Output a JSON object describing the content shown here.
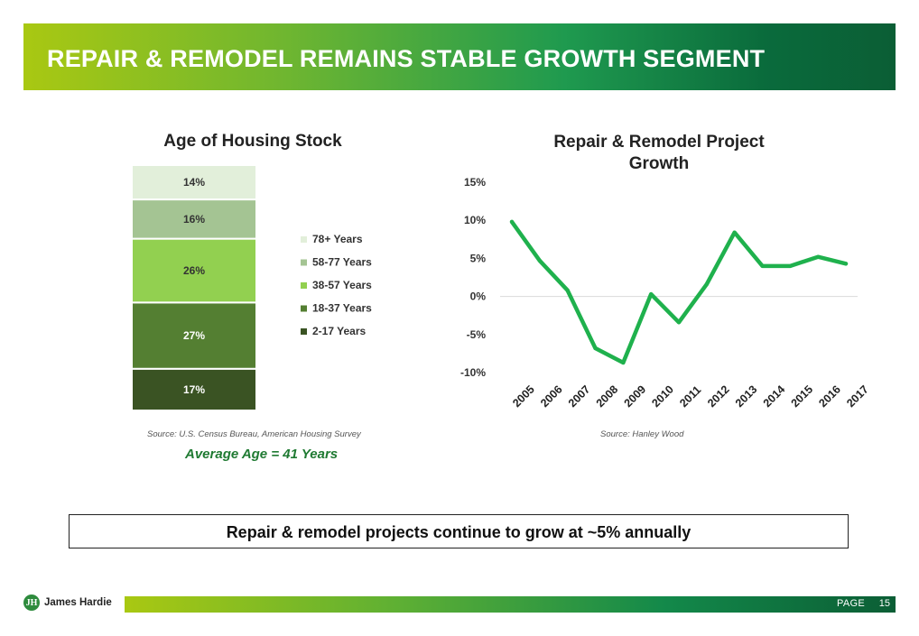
{
  "page_title": "REPAIR & REMODEL REMAINS STABLE GROWTH SEGMENT",
  "colors": {
    "green_dark": "#3a5323",
    "green_mid": "#547f32",
    "green_bright": "#92d050",
    "green_sage": "#a4c493",
    "green_pale": "#e2efda",
    "line": "#1fb14d"
  },
  "chart_data": [
    {
      "type": "bar",
      "subtype": "stacked-100",
      "title": "Age of Housing Stock",
      "categories": [
        "Housing Stock"
      ],
      "series": [
        {
          "name": "2-17 Years",
          "values": [
            17
          ],
          "label": "17%",
          "color": "#3a5323"
        },
        {
          "name": "18-37 Years",
          "values": [
            27
          ],
          "label": "27%",
          "color": "#547f32"
        },
        {
          "name": "38-57 Years",
          "values": [
            26
          ],
          "label": "26%",
          "color": "#92d050"
        },
        {
          "name": "58-77 Years",
          "values": [
            16
          ],
          "label": "16%",
          "color": "#a4c493"
        },
        {
          "name": "78+ Years",
          "values": [
            14
          ],
          "label": "14%",
          "color": "#e2efda"
        }
      ],
      "legend": [
        "78+ Years",
        "58-77 Years",
        "38-57 Years",
        "18-37 Years",
        "2-17 Years"
      ],
      "legend_position": "right"
    },
    {
      "type": "line",
      "title": "Repair & Remodel Project Growth",
      "x": [
        "2005",
        "2006",
        "2007",
        "2008",
        "2009",
        "2010",
        "2011",
        "2012",
        "2013",
        "2014",
        "2015",
        "2016",
        "2017"
      ],
      "series": [
        {
          "name": "Growth",
          "values": [
            9.8,
            4.7,
            0.8,
            -6.8,
            -8.7,
            0.3,
            -3.4,
            1.6,
            8.4,
            4.0,
            4.0,
            5.2,
            4.3
          ]
        }
      ],
      "y_ticks": [
        15,
        10,
        5,
        0,
        -5,
        -10
      ],
      "y_tick_labels": [
        "15%",
        "10%",
        "5%",
        "0%",
        "-5%",
        "-10%"
      ],
      "ylim": [
        -10,
        15
      ],
      "grid": "zero-line"
    }
  ],
  "sources": {
    "left": "Source: U.S. Census Bureau, American Housing Survey",
    "right": "Source: Hanley Wood"
  },
  "average_age": "Average Age = 41 Years",
  "summary": "Repair & remodel projects continue to grow at ~5% annually",
  "footer": {
    "logo_mark": "JH",
    "logo_text": "James Hardie",
    "page_label": "PAGE",
    "page_number": "15"
  }
}
